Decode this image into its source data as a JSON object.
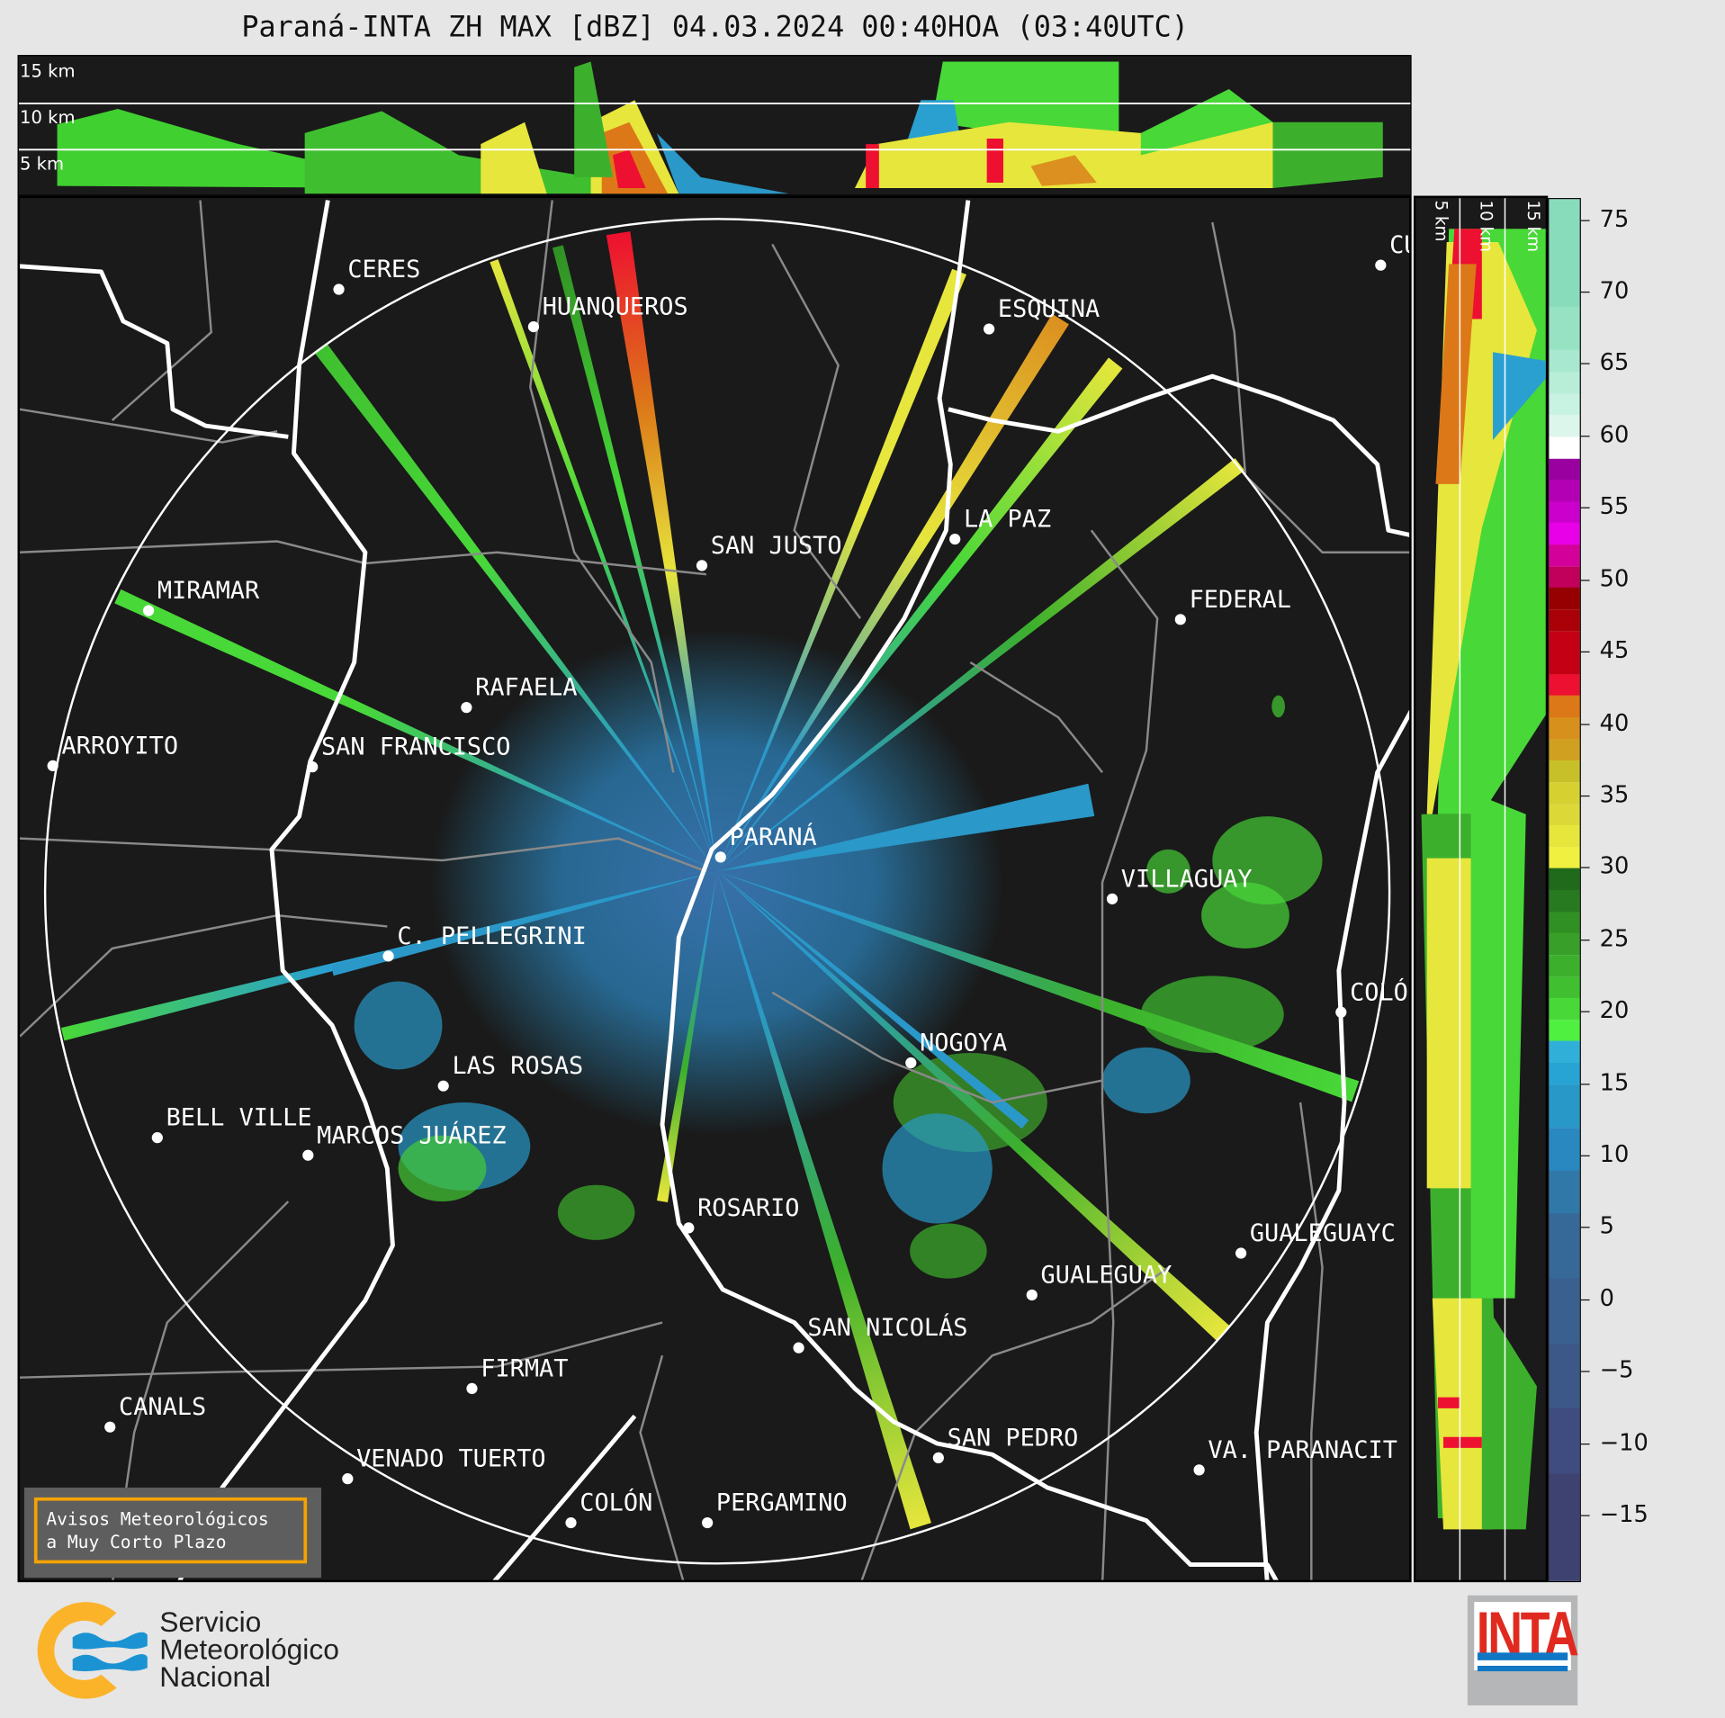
{
  "title": "Paraná-INTA ZH MAX [dBZ] 04.03.2024 00:40HOA (03:40UTC)",
  "top_section": {
    "height_labels": [
      "15 km",
      "10 km",
      "5 km"
    ]
  },
  "right_section": {
    "height_labels": [
      "5 km",
      "10 km",
      "15 km"
    ]
  },
  "cities": [
    "CERES",
    "HUANQUEROS",
    "ESQUINA",
    "CU",
    "SAN JUSTO",
    "LA PAZ",
    "FEDERAL",
    "MIRAMAR",
    "RAFAELA",
    "ARROYITO",
    "SAN FRANCISCO",
    "PARANÁ",
    "VILLAGUAY",
    "C. PELLEGRINI",
    "COLÓ",
    "NOGOYA",
    "LAS ROSAS",
    "BELL VILLE",
    "MARCOS JUÁREZ",
    "ROSARIO",
    "GUALEGUAYC",
    "GUALEGUAY",
    "SAN NICOLÁS",
    "FIRMAT",
    "CANALS",
    "SAN PEDRO",
    "VA. PARANACIT",
    "VENADO TUERTO",
    "COLÓN",
    "PERGAMINO"
  ],
  "colorbar": {
    "unit": "dBZ",
    "range": [
      -19.5,
      76.5
    ],
    "ticks": [
      "75",
      "70",
      "65",
      "60",
      "55",
      "50",
      "45",
      "40",
      "35",
      "30",
      "25",
      "20",
      "15",
      "10",
      "5",
      "0",
      "−5",
      "−10",
      "−15"
    ],
    "bands": [
      [
        69,
        76.5,
        "#88dcbc"
      ],
      [
        66,
        69,
        "#98e2c4"
      ],
      [
        64.5,
        66,
        "#a8e8d0"
      ],
      [
        63,
        64.5,
        "#b8eed8"
      ],
      [
        61.5,
        63,
        "#c8f2e2"
      ],
      [
        60,
        61.5,
        "#dcf6ec"
      ],
      [
        58.5,
        60,
        "#ffffff"
      ],
      [
        57,
        58.5,
        "#9a00a0"
      ],
      [
        55.5,
        57,
        "#b400b4"
      ],
      [
        54,
        55.5,
        "#cc00cc"
      ],
      [
        52.5,
        54,
        "#e800e8"
      ],
      [
        51,
        52.5,
        "#d4009a"
      ],
      [
        49.5,
        51,
        "#c0005a"
      ],
      [
        48,
        49.5,
        "#960000"
      ],
      [
        46.5,
        48,
        "#aa0008"
      ],
      [
        43.5,
        46.5,
        "#c40014"
      ],
      [
        42,
        43.5,
        "#ee1030"
      ],
      [
        40.5,
        42,
        "#dc7818"
      ],
      [
        39,
        40.5,
        "#d8901c"
      ],
      [
        37.5,
        39,
        "#d0a020"
      ],
      [
        36,
        37.5,
        "#c8c028"
      ],
      [
        34.5,
        36,
        "#d6d030"
      ],
      [
        33,
        34.5,
        "#dcd838"
      ],
      [
        31.5,
        33,
        "#e6e63c"
      ],
      [
        30,
        31.5,
        "#f0f040"
      ],
      [
        28.5,
        30,
        "#206a1c"
      ],
      [
        27,
        28.5,
        "#287a20"
      ],
      [
        25.5,
        27,
        "#309024"
      ],
      [
        24,
        25.5,
        "#38a028"
      ],
      [
        22.5,
        24,
        "#3cb02c"
      ],
      [
        21,
        22.5,
        "#40c030"
      ],
      [
        19.5,
        21,
        "#48d838"
      ],
      [
        18,
        19.5,
        "#50f040"
      ],
      [
        16.5,
        18,
        "#30b0d8"
      ],
      [
        15,
        16.5,
        "#28a4d4"
      ],
      [
        12,
        15,
        "#2898c8"
      ],
      [
        9,
        12,
        "#2a88c0"
      ],
      [
        6,
        9,
        "#3078a8"
      ],
      [
        1.5,
        6,
        "#366898"
      ],
      [
        -3,
        1.5,
        "#3a6090"
      ],
      [
        -7.5,
        -3,
        "#3c5888"
      ],
      [
        -12,
        -7.5,
        "#3e4c80"
      ],
      [
        -19.5,
        -12,
        "#3e4270"
      ]
    ]
  },
  "warning_box": {
    "line1": "Avisos Meteorológicos",
    "line2": "a Muy Corto Plazo",
    "border_color": "#f5a300"
  },
  "smn_logo": {
    "line1": "Servicio",
    "line2": "Meteorológico",
    "line3": "Nacional"
  },
  "inta_logo": {
    "text": "INTA"
  }
}
